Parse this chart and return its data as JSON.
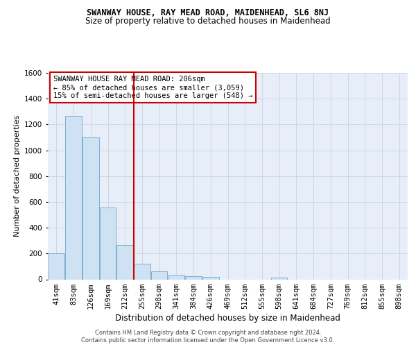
{
  "title1": "SWANWAY HOUSE, RAY MEAD ROAD, MAIDENHEAD, SL6 8NJ",
  "title2": "Size of property relative to detached houses in Maidenhead",
  "xlabel": "Distribution of detached houses by size in Maidenhead",
  "ylabel": "Number of detached properties",
  "categories": [
    "41sqm",
    "83sqm",
    "126sqm",
    "169sqm",
    "212sqm",
    "255sqm",
    "298sqm",
    "341sqm",
    "384sqm",
    "426sqm",
    "469sqm",
    "512sqm",
    "555sqm",
    "598sqm",
    "641sqm",
    "684sqm",
    "727sqm",
    "769sqm",
    "812sqm",
    "855sqm",
    "898sqm"
  ],
  "values": [
    200,
    1265,
    1100,
    555,
    265,
    120,
    60,
    35,
    25,
    18,
    0,
    0,
    0,
    15,
    0,
    0,
    0,
    0,
    0,
    0,
    0
  ],
  "bar_color": "#cfe2f3",
  "bar_edgecolor": "#7bafd4",
  "vline_x": 4.5,
  "vline_color": "#cc0000",
  "annotation_line1": "SWANWAY HOUSE RAY MEAD ROAD: 206sqm",
  "annotation_line2": "← 85% of detached houses are smaller (3,059)",
  "annotation_line3": "15% of semi-detached houses are larger (548) →",
  "annotation_box_color": "#ffffff",
  "annotation_box_edgecolor": "#cc0000",
  "ylim": [
    0,
    1600
  ],
  "yticks": [
    0,
    200,
    400,
    600,
    800,
    1000,
    1200,
    1400,
    1600
  ],
  "grid_color": "#cdd5e8",
  "background_color": "#e8eef8",
  "footer1": "Contains HM Land Registry data © Crown copyright and database right 2024.",
  "footer2": "Contains public sector information licensed under the Open Government Licence v3.0.",
  "title1_fontsize": 8.5,
  "title2_fontsize": 8.5,
  "xlabel_fontsize": 8.5,
  "ylabel_fontsize": 8.0,
  "tick_fontsize": 7.5,
  "annotation_fontsize": 7.5,
  "footer_fontsize": 6.0
}
